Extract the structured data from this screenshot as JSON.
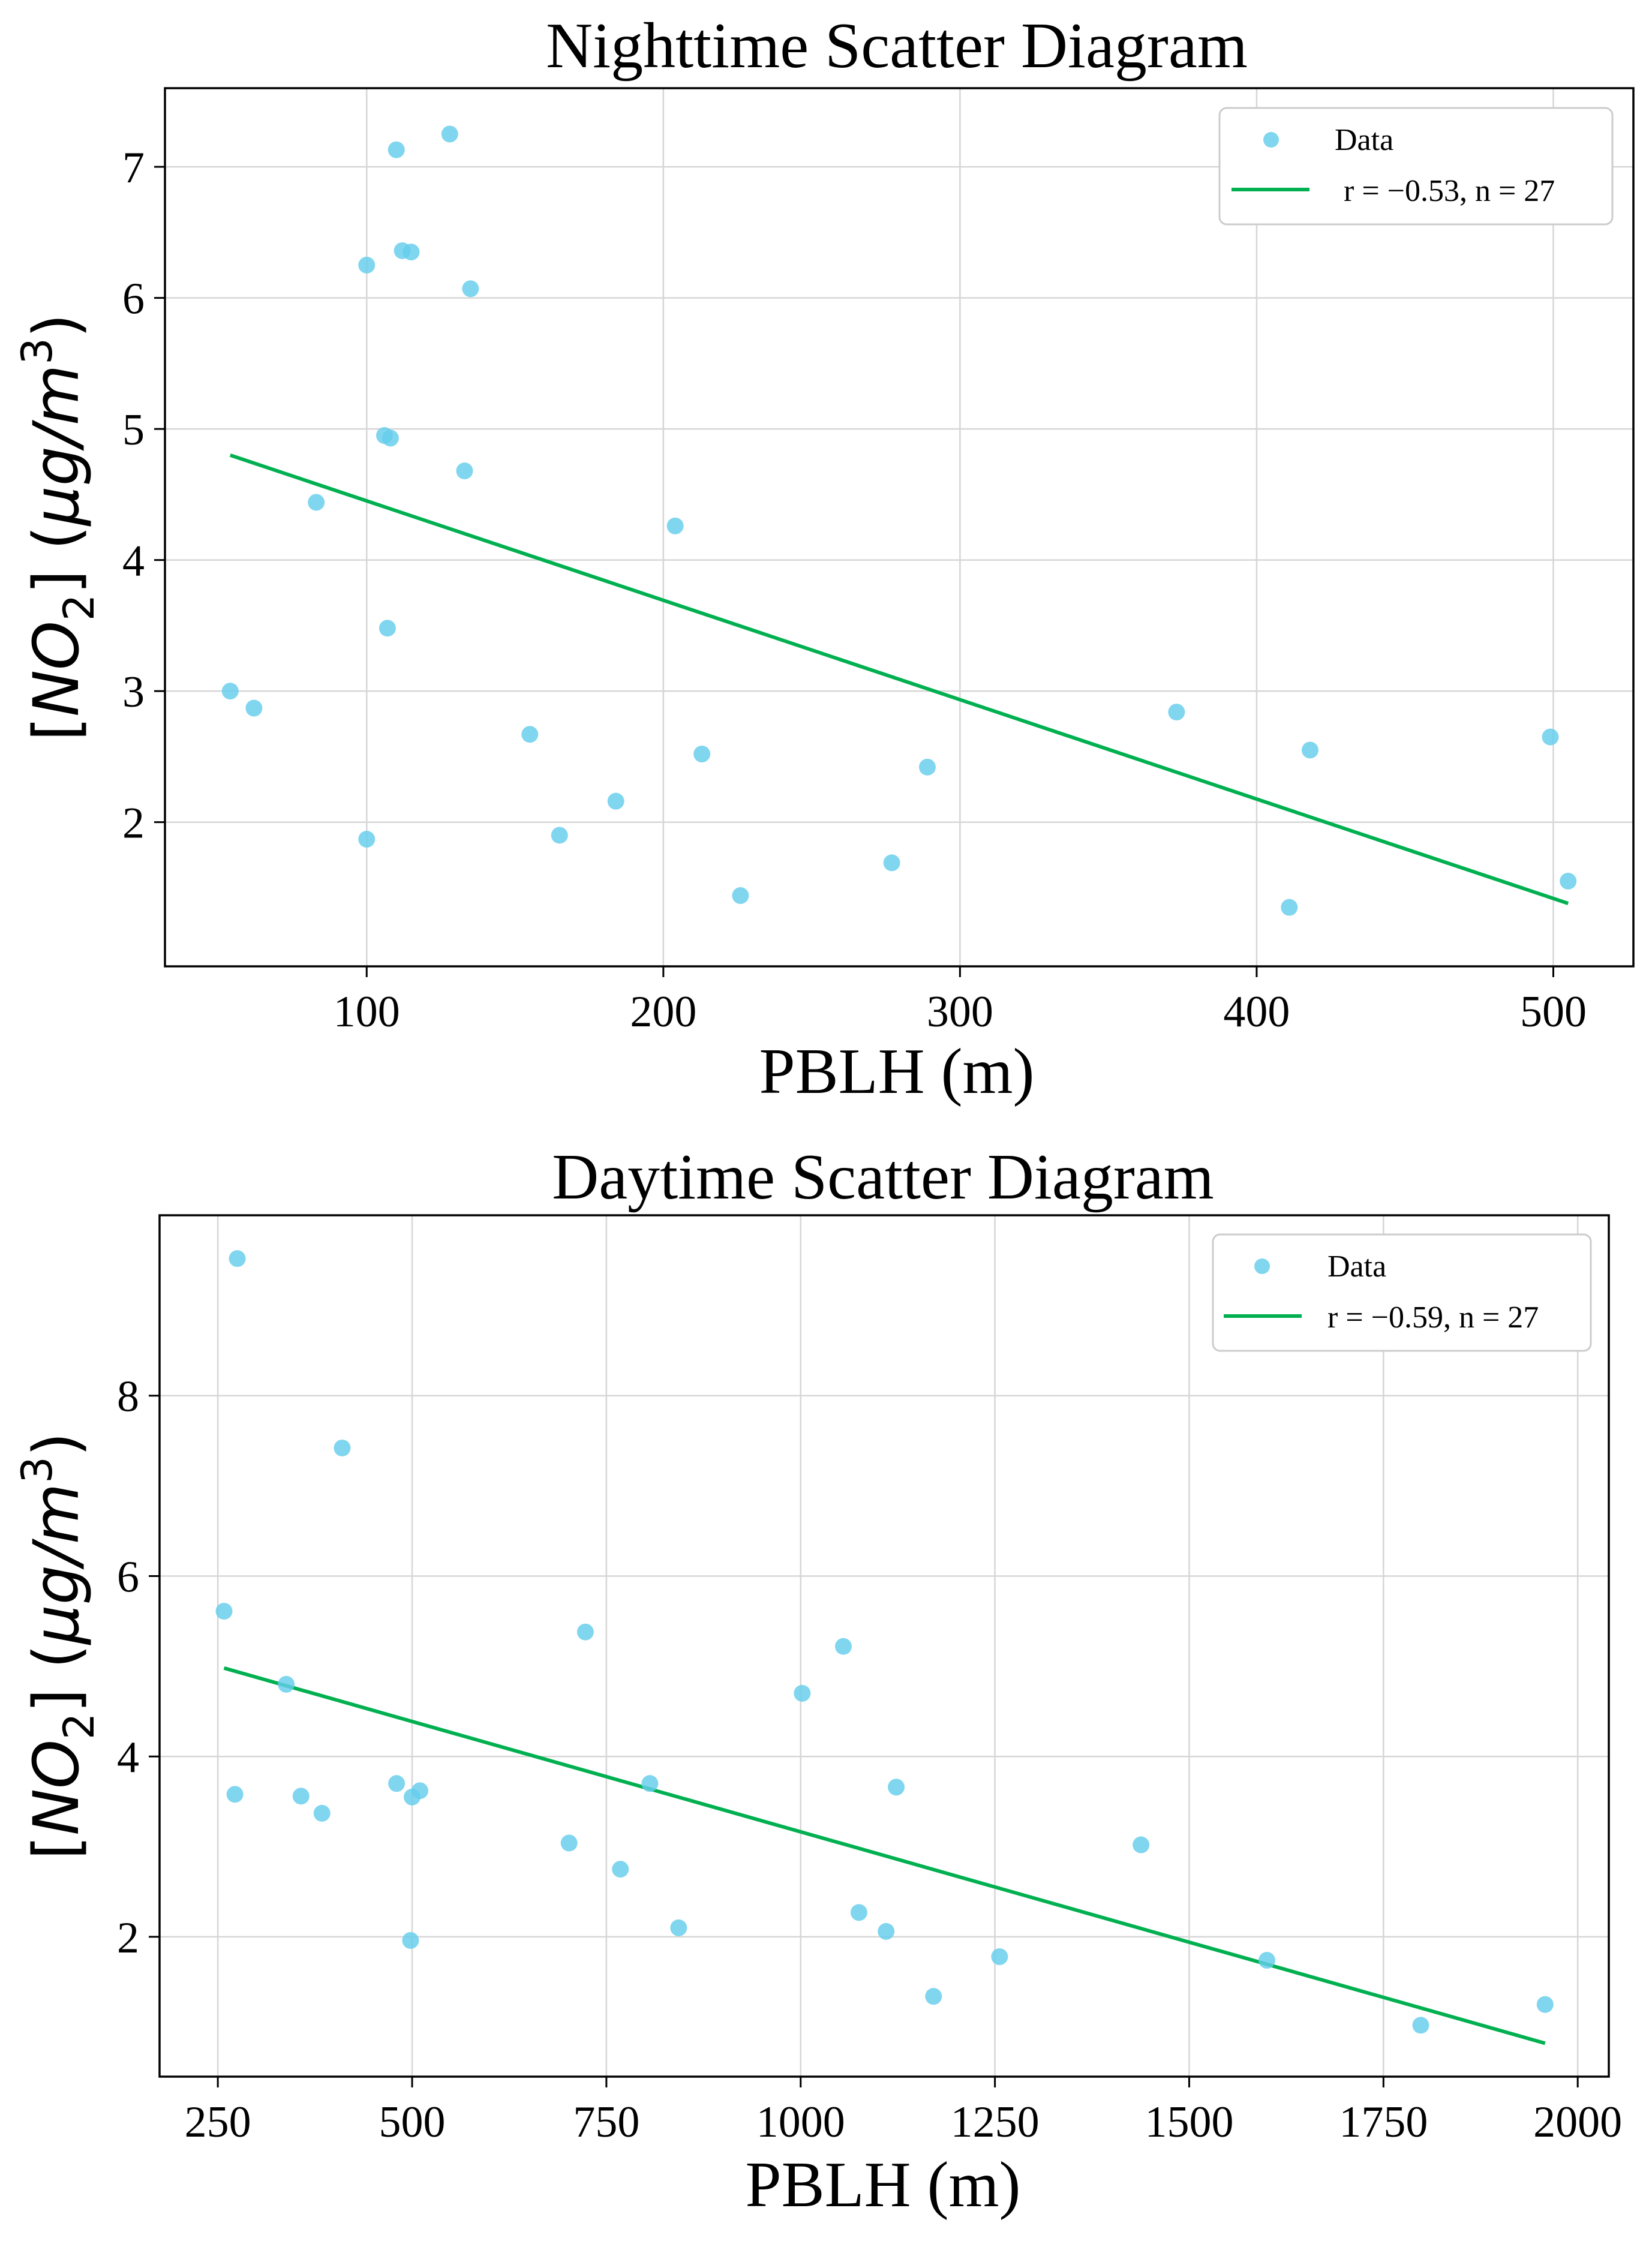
{
  "colors": {
    "point": "#64CDEB",
    "fit": "#00B050"
  },
  "charts": [
    {
      "title": "Nighttime Scatter Diagram",
      "xlabel": "PBLH (m)",
      "ylabel": {
        "open": "[",
        "species": "NO",
        "sub": "2",
        "close": "] (",
        "unit": "μg/m",
        "sup": "3",
        "end": ")"
      },
      "legend": {
        "data_label": "Data",
        "fit_label": "r = −0.53, n = 27"
      }
    },
    {
      "title": "Daytime Scatter Diagram",
      "xlabel": "PBLH (m)",
      "ylabel": {
        "open": "[",
        "species": "NO",
        "sub": "2",
        "close": "] (",
        "unit": "μg/m",
        "sup": "3",
        "end": ")"
      },
      "legend": {
        "data_label": "Data",
        "fit_label": "r = −0.59, n = 27"
      }
    }
  ],
  "chart_data": [
    {
      "type": "scatter",
      "title": "Nighttime Scatter Diagram",
      "xlabel": "PBLH (m)",
      "ylabel": "[NO2] (μg/m3)",
      "xlim": [
        32,
        527
      ],
      "ylim": [
        0.9,
        7.6
      ],
      "xticks": [
        100,
        200,
        300,
        400,
        500
      ],
      "yticks": [
        2,
        3,
        4,
        5,
        6,
        7
      ],
      "grid": true,
      "legend_position": "top-right",
      "series": [
        {
          "name": "Data",
          "kind": "points",
          "x": [
            128,
            110,
            112,
            115,
            100,
            135,
            106,
            108,
            133,
            83,
            204,
            107,
            54,
            62,
            155,
            213,
            289,
            184,
            165,
            100,
            226,
            277,
            373,
            418,
            499,
            505,
            411
          ],
          "y": [
            7.25,
            7.13,
            6.36,
            6.35,
            6.25,
            6.07,
            4.95,
            4.93,
            4.68,
            4.44,
            4.26,
            3.48,
            3.0,
            2.87,
            2.67,
            2.52,
            2.42,
            2.16,
            1.9,
            1.87,
            1.44,
            1.69,
            2.84,
            2.55,
            2.65,
            1.55,
            1.35
          ]
        },
        {
          "name": "r = −0.53, n = 27",
          "kind": "fit_line",
          "x": [
            54,
            505
          ],
          "y": [
            4.8,
            1.38
          ]
        }
      ]
    },
    {
      "type": "scatter",
      "title": "Daytime Scatter Diagram",
      "xlabel": "PBLH (m)",
      "ylabel": "[NO2] (μg/m3)",
      "xlim": [
        175,
        2040
      ],
      "ylim": [
        0.45,
        10.0
      ],
      "xticks": [
        250,
        500,
        750,
        1000,
        1250,
        1500,
        1750,
        2000
      ],
      "yticks": [
        2,
        4,
        6,
        8
      ],
      "grid": true,
      "legend_position": "top-right",
      "series": [
        {
          "name": "Data",
          "kind": "points",
          "x": [
            275,
            410,
            258,
            338,
            272,
            357,
            384,
            480,
            500,
            510,
            498,
            702,
            723,
            768,
            806,
            843,
            1002,
            1055,
            1075,
            1110,
            1123,
            1171,
            1256,
            1438,
            1600,
            1798,
            1958
          ],
          "y": [
            9.52,
            7.42,
            5.61,
            4.8,
            3.58,
            3.56,
            3.37,
            3.7,
            3.55,
            3.62,
            1.96,
            3.04,
            5.38,
            2.75,
            3.7,
            2.1,
            4.7,
            5.22,
            2.27,
            2.06,
            3.66,
            1.34,
            1.78,
            3.02,
            1.74,
            1.02,
            1.25
          ]
        },
        {
          "name": "r = −0.59, n = 27",
          "kind": "fit_line",
          "x": [
            258,
            1958
          ],
          "y": [
            4.98,
            0.82
          ]
        }
      ]
    }
  ]
}
